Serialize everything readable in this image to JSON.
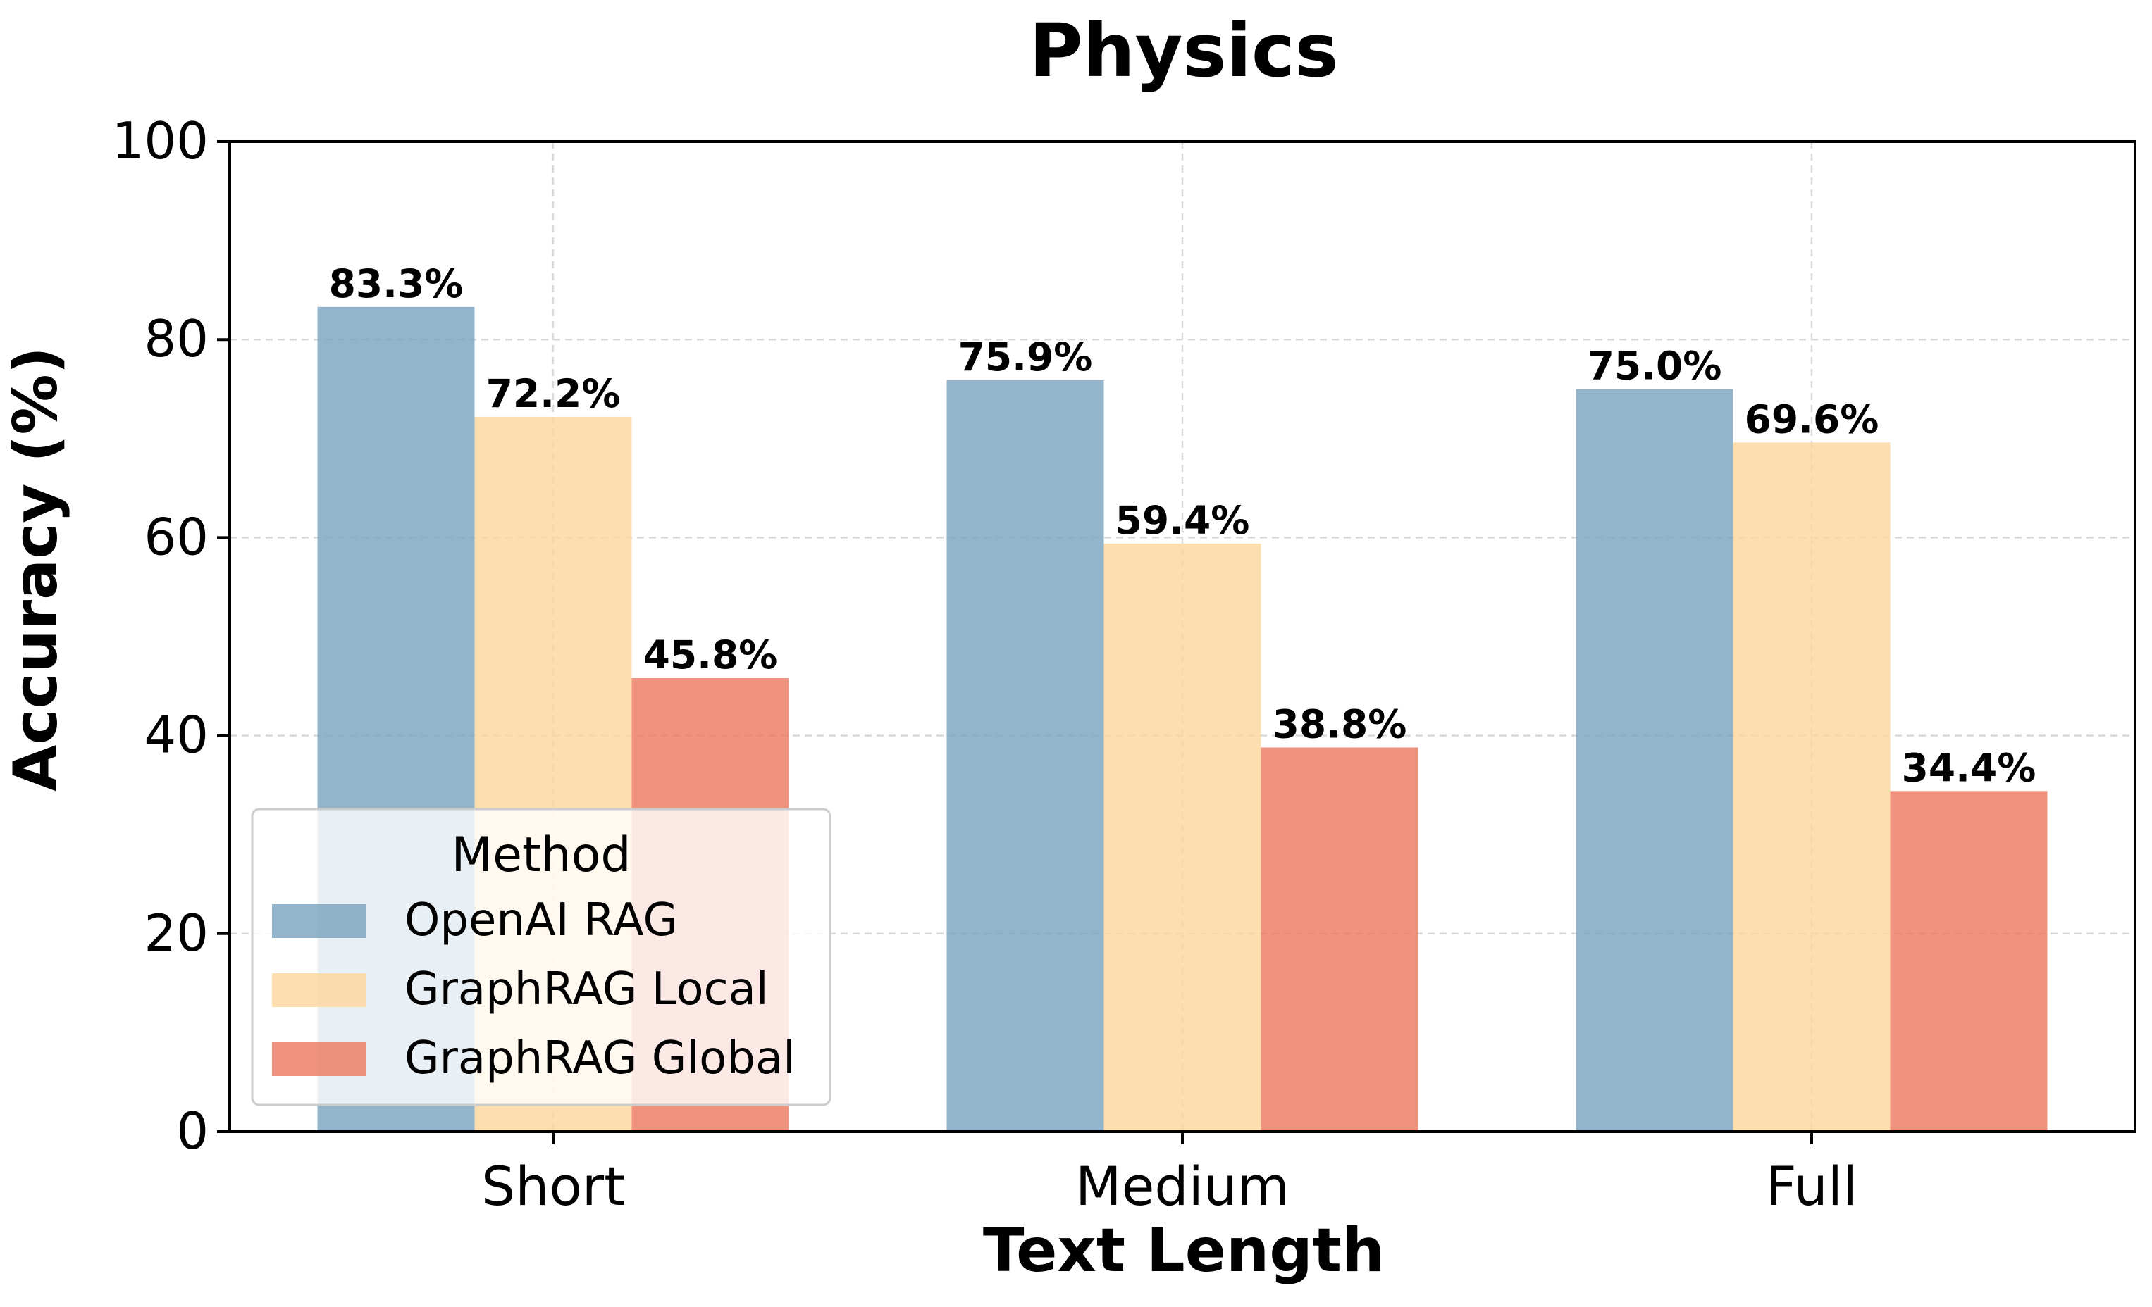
{
  "chart_data": {
    "type": "bar",
    "title": "Physics",
    "xlabel": "Text Length",
    "ylabel": "Accuracy (%)",
    "ylim": [
      0,
      100
    ],
    "yticks": [
      0,
      20,
      40,
      60,
      80,
      100
    ],
    "categories": [
      "Short",
      "Medium",
      "Full"
    ],
    "grid": true,
    "legend": {
      "title": "Method",
      "placement": "lower-left"
    },
    "series": [
      {
        "name": "OpenAI RAG",
        "color": "#7ba3bf",
        "values": [
          83.3,
          75.9,
          75.0
        ],
        "labels": [
          "83.3%",
          "75.9%",
          "75.0%"
        ]
      },
      {
        "name": "GraphRAG Local",
        "color": "#fcd79c",
        "values": [
          72.2,
          59.4,
          69.6
        ],
        "labels": [
          "72.2%",
          "59.4%",
          "69.6%"
        ]
      },
      {
        "name": "GraphRAG Global",
        "color": "#ec7b62",
        "values": [
          45.8,
          38.8,
          34.4
        ],
        "labels": [
          "45.8%",
          "38.8%",
          "34.4%"
        ]
      }
    ]
  }
}
